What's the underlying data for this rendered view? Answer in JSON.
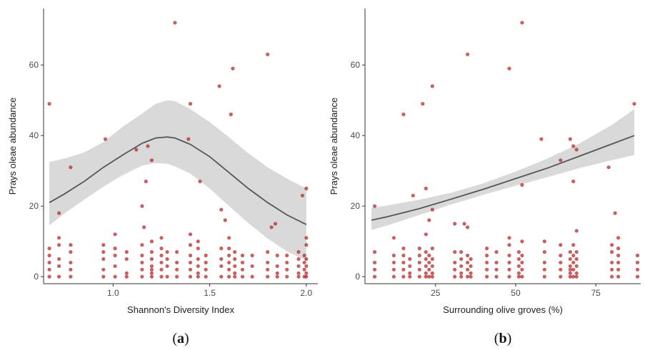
{
  "colors": {
    "point": "#b22222",
    "ribbon": "#d9d9d9",
    "line": "#555555",
    "axis": "#333333"
  },
  "chart_data": [
    {
      "type": "scatter",
      "panel_label": "(a)",
      "panel_letter": "a",
      "title": "",
      "xlabel": "Shannon's Diversity Index",
      "ylabel": "Prays oleae abundance",
      "xlim": [
        0.64,
        2.06
      ],
      "ylim": [
        -2,
        76
      ],
      "xticks": [
        1.0,
        1.5,
        2.0
      ],
      "xtick_labels": [
        "1.0",
        "1.5",
        "2.0"
      ],
      "yticks": [
        0,
        20,
        40,
        60
      ],
      "ytick_labels": [
        "0",
        "20",
        "40",
        "60"
      ],
      "grid": false,
      "points": [
        [
          0.67,
          49
        ],
        [
          0.72,
          18
        ],
        [
          0.78,
          31
        ],
        [
          0.96,
          39
        ],
        [
          1.12,
          36
        ],
        [
          1.18,
          37
        ],
        [
          1.2,
          33
        ],
        [
          1.32,
          72
        ],
        [
          1.4,
          49
        ],
        [
          1.39,
          39
        ],
        [
          1.55,
          54
        ],
        [
          1.56,
          19
        ],
        [
          1.58,
          16
        ],
        [
          1.62,
          59
        ],
        [
          1.61,
          46
        ],
        [
          1.45,
          27
        ],
        [
          1.17,
          27
        ],
        [
          1.15,
          20
        ],
        [
          1.8,
          63
        ],
        [
          1.84,
          15
        ],
        [
          1.82,
          14
        ],
        [
          1.98,
          23
        ],
        [
          2.0,
          25
        ],
        [
          2.0,
          11
        ],
        [
          1.16,
          14
        ],
        [
          0.67,
          0
        ],
        [
          0.67,
          2
        ],
        [
          0.67,
          4
        ],
        [
          0.67,
          6
        ],
        [
          0.67,
          8
        ],
        [
          0.72,
          0
        ],
        [
          0.72,
          3
        ],
        [
          0.72,
          5
        ],
        [
          0.72,
          9
        ],
        [
          0.72,
          11
        ],
        [
          0.78,
          0
        ],
        [
          0.78,
          2
        ],
        [
          0.78,
          4
        ],
        [
          0.78,
          7
        ],
        [
          0.78,
          9
        ],
        [
          0.95,
          0
        ],
        [
          0.95,
          2
        ],
        [
          0.95,
          5
        ],
        [
          0.95,
          7
        ],
        [
          0.95,
          9
        ],
        [
          1.01,
          0
        ],
        [
          1.01,
          3
        ],
        [
          1.01,
          6
        ],
        [
          1.01,
          8
        ],
        [
          1.01,
          12
        ],
        [
          1.07,
          0
        ],
        [
          1.07,
          1
        ],
        [
          1.07,
          5
        ],
        [
          1.07,
          7
        ],
        [
          1.15,
          0
        ],
        [
          1.15,
          2
        ],
        [
          1.15,
          4
        ],
        [
          1.15,
          6
        ],
        [
          1.15,
          9
        ],
        [
          1.2,
          0
        ],
        [
          1.2,
          1
        ],
        [
          1.2,
          2
        ],
        [
          1.2,
          3
        ],
        [
          1.2,
          5
        ],
        [
          1.2,
          7
        ],
        [
          1.2,
          10
        ],
        [
          1.25,
          0
        ],
        [
          1.25,
          2
        ],
        [
          1.25,
          4
        ],
        [
          1.25,
          6
        ],
        [
          1.25,
          8
        ],
        [
          1.25,
          11
        ],
        [
          1.28,
          0
        ],
        [
          1.28,
          3
        ],
        [
          1.28,
          5
        ],
        [
          1.28,
          7
        ],
        [
          1.33,
          0
        ],
        [
          1.33,
          2
        ],
        [
          1.33,
          4
        ],
        [
          1.33,
          7
        ],
        [
          1.4,
          0
        ],
        [
          1.4,
          2
        ],
        [
          1.4,
          4
        ],
        [
          1.4,
          6
        ],
        [
          1.4,
          9
        ],
        [
          1.4,
          12
        ],
        [
          1.44,
          0
        ],
        [
          1.44,
          1
        ],
        [
          1.44,
          3
        ],
        [
          1.44,
          5
        ],
        [
          1.44,
          8
        ],
        [
          1.44,
          10
        ],
        [
          1.48,
          0
        ],
        [
          1.48,
          2
        ],
        [
          1.48,
          4
        ],
        [
          1.48,
          6
        ],
        [
          1.56,
          0
        ],
        [
          1.56,
          3
        ],
        [
          1.56,
          5
        ],
        [
          1.56,
          8
        ],
        [
          1.6,
          0
        ],
        [
          1.6,
          2
        ],
        [
          1.6,
          4
        ],
        [
          1.6,
          6
        ],
        [
          1.6,
          8
        ],
        [
          1.6,
          11
        ],
        [
          1.63,
          0
        ],
        [
          1.63,
          1
        ],
        [
          1.63,
          3
        ],
        [
          1.63,
          5
        ],
        [
          1.63,
          7
        ],
        [
          1.67,
          0
        ],
        [
          1.67,
          2
        ],
        [
          1.67,
          4
        ],
        [
          1.67,
          6
        ],
        [
          1.72,
          0
        ],
        [
          1.72,
          3
        ],
        [
          1.72,
          6
        ],
        [
          1.8,
          0
        ],
        [
          1.8,
          2
        ],
        [
          1.8,
          4
        ],
        [
          1.8,
          7
        ],
        [
          1.85,
          0
        ],
        [
          1.85,
          1
        ],
        [
          1.85,
          3
        ],
        [
          1.85,
          6
        ],
        [
          1.9,
          0
        ],
        [
          1.9,
          2
        ],
        [
          1.9,
          4
        ],
        [
          1.9,
          6
        ],
        [
          1.96,
          0
        ],
        [
          1.96,
          1
        ],
        [
          1.96,
          3
        ],
        [
          1.96,
          5
        ],
        [
          1.96,
          7
        ],
        [
          1.99,
          0
        ],
        [
          1.99,
          2
        ],
        [
          1.99,
          4
        ],
        [
          1.99,
          6
        ],
        [
          2.0,
          0
        ],
        [
          2.0,
          1
        ],
        [
          2.0,
          3
        ],
        [
          2.0,
          5
        ],
        [
          2.0,
          9
        ]
      ],
      "fit": {
        "x": [
          0.67,
          0.75,
          0.85,
          0.95,
          1.05,
          1.15,
          1.22,
          1.28,
          1.32,
          1.4,
          1.5,
          1.6,
          1.7,
          1.8,
          1.9,
          2.0
        ],
        "y": [
          21,
          23.5,
          27,
          31,
          34.5,
          37.8,
          39.3,
          39.6,
          39.3,
          37.5,
          34,
          29.5,
          25,
          21,
          17.5,
          14.8
        ],
        "lower": [
          14.5,
          18,
          21.8,
          25.5,
          28.8,
          31.5,
          32.2,
          32,
          31.3,
          29.2,
          25,
          20,
          15.2,
          10.8,
          7.2,
          4.5
        ],
        "upper": [
          32.5,
          33.5,
          35.2,
          38.2,
          42.5,
          46.2,
          49,
          50,
          49.8,
          47.5,
          43.8,
          39.5,
          35,
          31,
          27.8,
          25
        ]
      }
    },
    {
      "type": "scatter",
      "panel_label": "(b)",
      "panel_letter": "b",
      "title": "",
      "xlabel": "Surrounding olive groves (%)",
      "ylabel": "Prays oleae abundance",
      "xlim": [
        3,
        89
      ],
      "ylim": [
        -2,
        76
      ],
      "xticks": [
        25,
        50,
        75
      ],
      "xtick_labels": [
        "25",
        "50",
        "75"
      ],
      "yticks": [
        0,
        20,
        40,
        60
      ],
      "ytick_labels": [
        "0",
        "20",
        "40",
        "60"
      ],
      "grid": false,
      "points": [
        [
          6,
          20
        ],
        [
          15,
          46
        ],
        [
          18,
          23
        ],
        [
          21,
          49
        ],
        [
          22,
          25
        ],
        [
          24,
          54
        ],
        [
          35,
          63
        ],
        [
          48,
          59
        ],
        [
          52,
          72
        ],
        [
          58,
          39
        ],
        [
          64,
          33
        ],
        [
          67,
          39
        ],
        [
          68,
          37
        ],
        [
          69,
          36
        ],
        [
          79,
          31
        ],
        [
          87,
          49
        ],
        [
          68,
          27
        ],
        [
          34,
          15
        ],
        [
          31,
          15
        ],
        [
          24,
          19
        ],
        [
          23,
          16
        ],
        [
          22,
          12
        ],
        [
          81,
          18
        ],
        [
          52,
          26
        ],
        [
          35,
          14
        ],
        [
          6,
          0
        ],
        [
          6,
          2
        ],
        [
          6,
          4
        ],
        [
          6,
          7
        ],
        [
          12,
          0
        ],
        [
          12,
          2
        ],
        [
          12,
          4
        ],
        [
          12,
          6
        ],
        [
          12,
          11
        ],
        [
          15,
          0
        ],
        [
          15,
          2
        ],
        [
          15,
          4
        ],
        [
          15,
          6
        ],
        [
          15,
          8
        ],
        [
          17,
          0
        ],
        [
          17,
          1
        ],
        [
          17,
          3
        ],
        [
          17,
          5
        ],
        [
          20,
          0
        ],
        [
          20,
          2
        ],
        [
          20,
          4
        ],
        [
          20,
          6
        ],
        [
          20,
          8
        ],
        [
          22,
          0
        ],
        [
          22,
          1
        ],
        [
          22,
          3
        ],
        [
          22,
          5
        ],
        [
          22,
          7
        ],
        [
          23,
          0
        ],
        [
          23,
          2
        ],
        [
          23,
          4
        ],
        [
          23,
          6
        ],
        [
          24,
          0
        ],
        [
          24,
          1
        ],
        [
          24,
          3
        ],
        [
          24,
          5
        ],
        [
          24,
          8
        ],
        [
          31,
          0
        ],
        [
          31,
          2
        ],
        [
          31,
          4
        ],
        [
          31,
          7
        ],
        [
          33,
          0
        ],
        [
          33,
          1
        ],
        [
          33,
          3
        ],
        [
          33,
          5
        ],
        [
          33,
          7
        ],
        [
          35,
          0
        ],
        [
          35,
          2
        ],
        [
          35,
          4
        ],
        [
          35,
          6
        ],
        [
          36,
          0
        ],
        [
          36,
          1
        ],
        [
          36,
          3
        ],
        [
          36,
          5
        ],
        [
          41,
          0
        ],
        [
          41,
          2
        ],
        [
          41,
          4
        ],
        [
          41,
          6
        ],
        [
          41,
          8
        ],
        [
          44,
          0
        ],
        [
          44,
          2
        ],
        [
          44,
          4
        ],
        [
          44,
          7
        ],
        [
          48,
          0
        ],
        [
          48,
          2
        ],
        [
          48,
          4
        ],
        [
          48,
          6
        ],
        [
          48,
          9
        ],
        [
          48,
          11
        ],
        [
          51,
          0
        ],
        [
          51,
          1
        ],
        [
          51,
          3
        ],
        [
          51,
          5
        ],
        [
          51,
          7
        ],
        [
          52,
          0
        ],
        [
          52,
          2
        ],
        [
          52,
          4
        ],
        [
          52,
          6
        ],
        [
          52,
          10
        ],
        [
          59,
          0
        ],
        [
          59,
          2
        ],
        [
          59,
          4
        ],
        [
          59,
          7
        ],
        [
          59,
          10
        ],
        [
          64,
          0
        ],
        [
          64,
          2
        ],
        [
          64,
          4
        ],
        [
          64,
          6
        ],
        [
          64,
          9
        ],
        [
          67,
          0
        ],
        [
          67,
          1
        ],
        [
          67,
          2
        ],
        [
          67,
          3
        ],
        [
          67,
          5
        ],
        [
          67,
          7
        ],
        [
          68,
          0
        ],
        [
          68,
          2
        ],
        [
          68,
          4
        ],
        [
          68,
          6
        ],
        [
          68,
          9
        ],
        [
          69,
          0
        ],
        [
          69,
          1
        ],
        [
          69,
          3
        ],
        [
          69,
          5
        ],
        [
          69,
          7
        ],
        [
          69,
          13
        ],
        [
          80,
          0
        ],
        [
          80,
          2
        ],
        [
          80,
          4
        ],
        [
          80,
          7
        ],
        [
          80,
          9
        ],
        [
          82,
          0
        ],
        [
          82,
          2
        ],
        [
          82,
          4
        ],
        [
          82,
          6
        ],
        [
          82,
          8
        ],
        [
          82,
          11
        ],
        [
          88,
          0
        ],
        [
          88,
          2
        ],
        [
          88,
          4
        ],
        [
          88,
          6
        ]
      ],
      "fit": {
        "x": [
          5,
          10,
          20,
          30,
          40,
          50,
          60,
          70,
          80,
          87
        ],
        "y": [
          16,
          17,
          19.3,
          22,
          24.8,
          27.8,
          30.8,
          34.2,
          37.6,
          40
        ],
        "lower": [
          13.2,
          14.5,
          17.5,
          20.5,
          23.2,
          25.8,
          28.2,
          30.8,
          33,
          34.5
        ],
        "upper": [
          19.5,
          20.2,
          21.8,
          23.8,
          26.5,
          29.8,
          33.5,
          37.8,
          43,
          47.5
        ]
      }
    }
  ]
}
